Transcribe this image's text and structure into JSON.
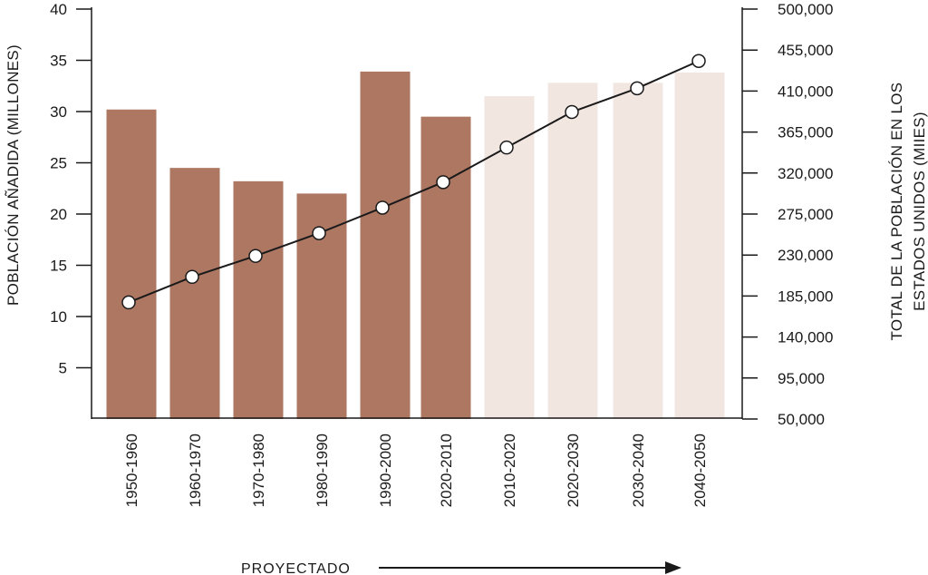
{
  "chart_data": {
    "type": "bar",
    "categories": [
      "1950-1960",
      "1960-1970",
      "1970-1980",
      "1980-1990",
      "1990-2000",
      "2020-2010",
      "2010-2020",
      "2020-2030",
      "2030-2040",
      "2040-2050"
    ],
    "series": [
      {
        "values": [
          30.2,
          24.5,
          23.2,
          22.0,
          33.9,
          29.5,
          31.5,
          32.8,
          32.8,
          33.8
        ],
        "projected": [
          false,
          false,
          false,
          false,
          false,
          false,
          true,
          true,
          true,
          true
        ]
      },
      {
        "type": "line",
        "axis": "right",
        "values": [
          178000,
          206000,
          229000,
          254000,
          282000,
          310000,
          348000,
          387000,
          413000,
          443000
        ]
      }
    ],
    "ylabel": "POBLACIÓN AÑADIDA (MILLONES)",
    "ylabel_right": [
      "TOTAL DE LA POBLACIÓN EN LOS",
      "ESTADOS UNIDOS (MIIES)"
    ],
    "y_ticks": [
      "5",
      "10",
      "15",
      "20",
      "25",
      "30",
      "35",
      "40"
    ],
    "y2_ticks": [
      "50,000",
      "95,000",
      "140,000",
      "185,000",
      "230,000",
      "275,000",
      "320,000",
      "365,000",
      "410,000",
      "455,000",
      "500,000"
    ],
    "ylim": [
      0,
      40
    ],
    "y2lim": [
      50000,
      500000
    ],
    "projected_label": "PROYECTADO",
    "colors": {
      "historical_bar": "#ad7762",
      "projected_bar": "#f2e6e1",
      "line": "#1a1a1a",
      "marker_fill": "#ffffff"
    },
    "grid": false
  }
}
